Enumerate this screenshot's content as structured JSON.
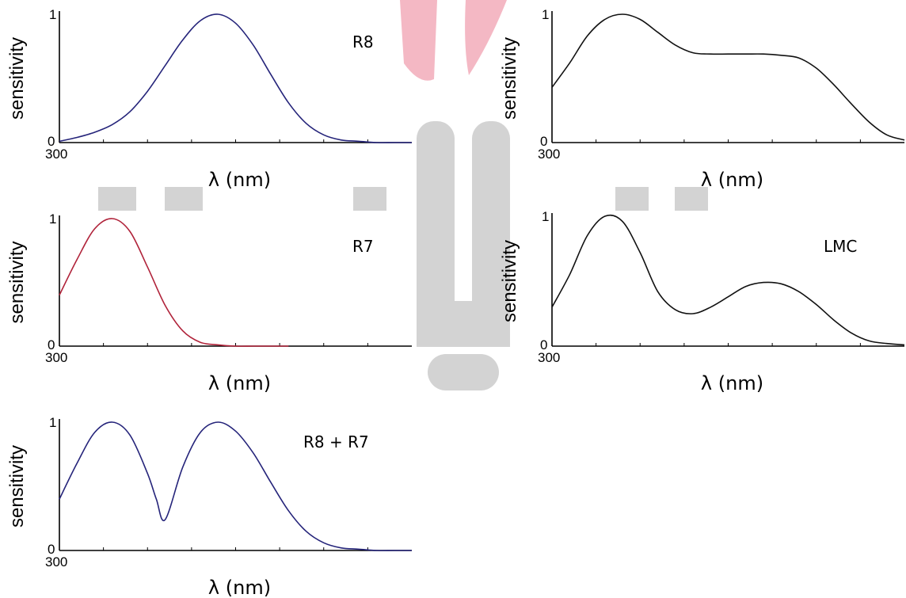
{
  "colors": {
    "background_bar": "#f4b8c4",
    "background_gray": "#d3d3d3",
    "curve_blue": "#25247a",
    "curve_red": "#b0233a",
    "curve_black": "#111111"
  },
  "chart_data": [
    {
      "type": "line",
      "panel": "top-left",
      "label": "R8",
      "xlabel": "λ (nm)",
      "ylabel": "sensitivity",
      "x_tick_labels": [
        "300"
      ],
      "y_tick_labels": [
        "0",
        "1"
      ],
      "xlim": [
        300,
        700
      ],
      "ylim": [
        0,
        1
      ],
      "series": [
        {
          "color": "#25247a",
          "x": [
            300,
            320,
            340,
            360,
            380,
            400,
            420,
            440,
            460,
            480,
            500,
            520,
            540,
            560,
            580,
            600,
            620,
            640,
            660,
            680,
            700
          ],
          "y": [
            0.01,
            0.04,
            0.08,
            0.14,
            0.24,
            0.4,
            0.6,
            0.8,
            0.95,
            1.0,
            0.93,
            0.76,
            0.53,
            0.31,
            0.15,
            0.06,
            0.02,
            0.01,
            0.0,
            0.0,
            0.0
          ]
        }
      ]
    },
    {
      "type": "line",
      "panel": "top-right",
      "label": "",
      "xlabel": "λ (nm)",
      "ylabel": "sensitivity",
      "x_tick_labels": [
        "300"
      ],
      "y_tick_labels": [
        "0",
        "1"
      ],
      "xlim": [
        300,
        700
      ],
      "ylim": [
        0,
        1
      ],
      "series": [
        {
          "color": "#111111",
          "x": [
            300,
            320,
            340,
            360,
            380,
            400,
            420,
            440,
            460,
            480,
            500,
            520,
            540,
            560,
            580,
            600,
            620,
            640,
            660,
            680,
            700
          ],
          "y": [
            0.43,
            0.62,
            0.83,
            0.96,
            1.0,
            0.96,
            0.86,
            0.76,
            0.7,
            0.69,
            0.69,
            0.69,
            0.69,
            0.68,
            0.66,
            0.58,
            0.45,
            0.3,
            0.16,
            0.06,
            0.02
          ]
        }
      ]
    },
    {
      "type": "line",
      "panel": "middle-left",
      "label": "R7",
      "xlabel": "λ (nm)",
      "ylabel": "sensitivity",
      "x_tick_labels": [
        "300"
      ],
      "y_tick_labels": [
        "0",
        "1"
      ],
      "xlim": [
        300,
        700
      ],
      "ylim": [
        0,
        1
      ],
      "series": [
        {
          "color": "#b0233a",
          "x": [
            300,
            320,
            340,
            360,
            380,
            400,
            420,
            440,
            460,
            480,
            500,
            520,
            540,
            560
          ],
          "y": [
            0.4,
            0.68,
            0.92,
            1.0,
            0.9,
            0.62,
            0.32,
            0.12,
            0.03,
            0.01,
            0.0,
            0.0,
            0.0,
            0.0
          ]
        }
      ]
    },
    {
      "type": "line",
      "panel": "middle-right",
      "label": "LMC",
      "xlabel": "λ (nm)",
      "ylabel": "sensitivity",
      "x_tick_labels": [
        "300"
      ],
      "y_tick_labels": [
        "0",
        "1"
      ],
      "xlim": [
        300,
        700
      ],
      "ylim": [
        0,
        1
      ],
      "series": [
        {
          "color": "#111111",
          "x": [
            300,
            320,
            340,
            360,
            380,
            400,
            420,
            440,
            460,
            480,
            500,
            520,
            540,
            560,
            580,
            600,
            620,
            640,
            660,
            680,
            700
          ],
          "y": [
            0.3,
            0.55,
            0.85,
            1.0,
            0.96,
            0.72,
            0.42,
            0.28,
            0.25,
            0.3,
            0.38,
            0.46,
            0.49,
            0.48,
            0.42,
            0.32,
            0.2,
            0.1,
            0.04,
            0.02,
            0.01
          ]
        }
      ]
    },
    {
      "type": "line",
      "panel": "bottom-left",
      "label": "R8 + R7",
      "xlabel": "λ (nm)",
      "ylabel": "sensitivity",
      "x_tick_labels": [
        "300"
      ],
      "y_tick_labels": [
        "0",
        "1"
      ],
      "xlim": [
        300,
        700
      ],
      "ylim": [
        0,
        1
      ],
      "series": [
        {
          "color": "#25247a",
          "x": [
            300,
            320,
            340,
            360,
            380,
            400,
            410,
            420,
            440,
            460,
            480,
            500,
            520,
            540,
            560,
            580,
            600,
            620,
            640,
            660,
            680,
            700
          ],
          "y": [
            0.4,
            0.68,
            0.92,
            1.0,
            0.9,
            0.6,
            0.4,
            0.24,
            0.65,
            0.92,
            1.0,
            0.93,
            0.76,
            0.53,
            0.31,
            0.15,
            0.06,
            0.02,
            0.01,
            0.0,
            0.0,
            0.0
          ]
        }
      ]
    }
  ]
}
